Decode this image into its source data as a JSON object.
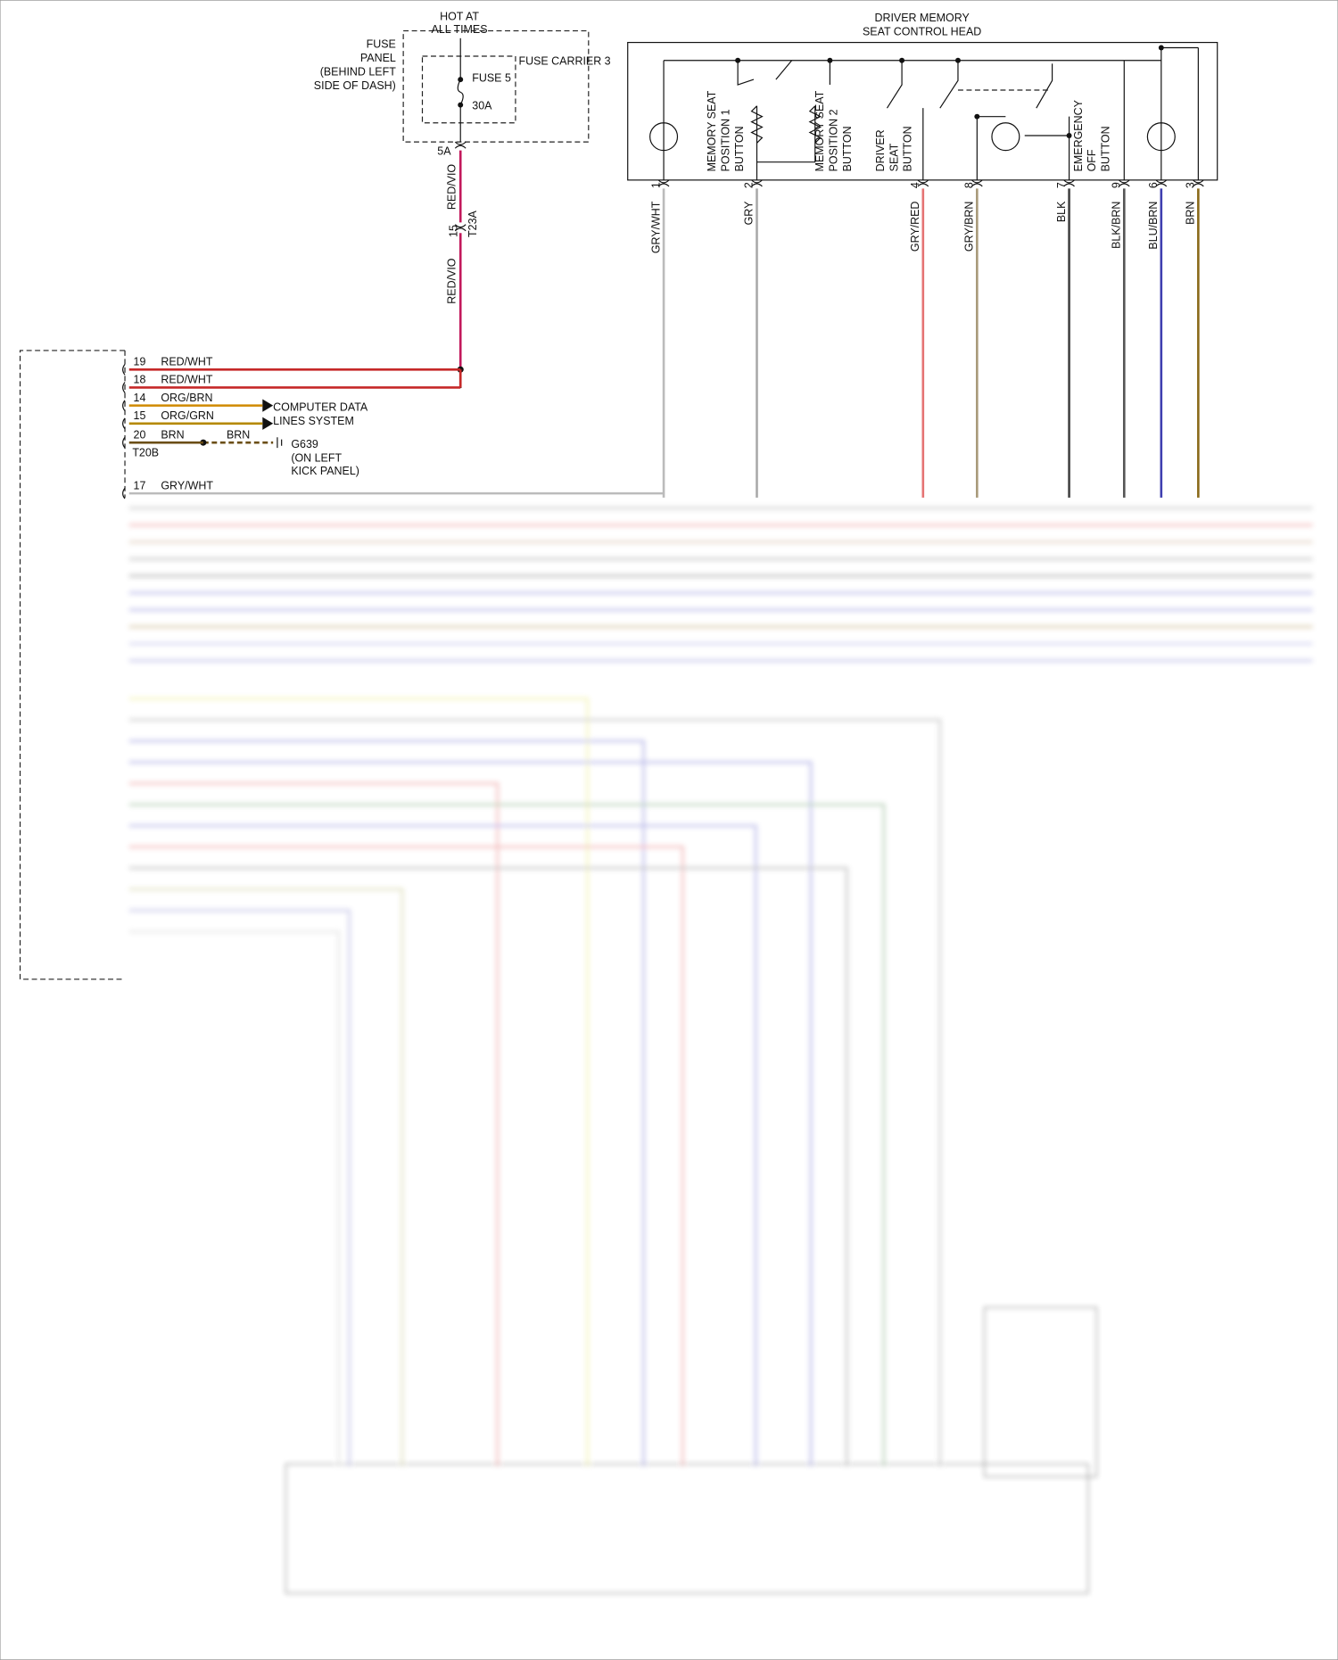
{
  "fuse_panel": {
    "hot_label": [
      "HOT AT",
      "ALL TIMES"
    ],
    "label": [
      "FUSE",
      "PANEL",
      "(BEHIND LEFT",
      "SIDE OF DASH)"
    ],
    "carrier": "FUSE CARRIER 3",
    "fuse": "FUSE 5",
    "rating": "30A",
    "pin": "5A"
  },
  "connector_t23a": {
    "wire_top": "RED/VIO",
    "pin": "15",
    "name": "T23A",
    "wire_bottom": "RED/VIO"
  },
  "control_head": {
    "title": [
      "DRIVER MEMORY",
      "SEAT CONTROL HEAD"
    ],
    "buttons": [
      [
        "MEMORY SEAT",
        "POSITION 1",
        "BUTTON"
      ],
      [
        "MEMORY SEAT",
        "POSITION 2",
        "BUTTON"
      ],
      [
        "DRIVER",
        "SEAT",
        "BUTTON"
      ],
      [
        "EMERGENCY",
        "OFF",
        "BUTTON"
      ]
    ],
    "pins": [
      {
        "pin": "1",
        "wire": "GRY/WHT"
      },
      {
        "pin": "2",
        "wire": "GRY"
      },
      {
        "pin": "4",
        "wire": "GRY/RED"
      },
      {
        "pin": "8",
        "wire": "GRY/BRN"
      },
      {
        "pin": "7",
        "wire": "BLK"
      },
      {
        "pin": "9",
        "wire": "BLK/BRN"
      },
      {
        "pin": "6",
        "wire": "BLU/BRN"
      },
      {
        "pin": "3",
        "wire": "BRN"
      }
    ]
  },
  "module": {
    "wires": [
      {
        "pin": "19",
        "wire": "RED/WHT"
      },
      {
        "pin": "18",
        "wire": "RED/WHT"
      },
      {
        "pin": "14",
        "wire": "ORG/BRN"
      },
      {
        "pin": "15",
        "wire": "ORG/GRN"
      },
      {
        "pin": "20",
        "wire": "BRN"
      },
      {
        "pin": "17",
        "wire": "GRY/WHT"
      }
    ],
    "connector": "T20B",
    "data_lines": [
      "COMPUTER DATA",
      "LINES SYSTEM"
    ],
    "ground": {
      "wire": "BRN",
      "name": "G639",
      "location": [
        "(ON LEFT",
        "KICK PANEL)"
      ]
    }
  }
}
